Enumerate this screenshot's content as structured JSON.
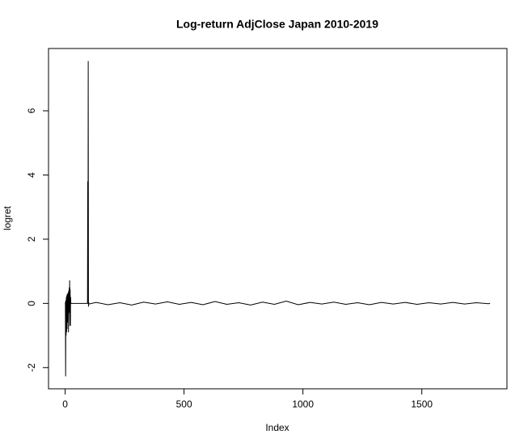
{
  "chart_data": {
    "type": "line",
    "title": "Log-return AdjClose Japan 2010-2019",
    "x_label": "Index",
    "y_label": "logret",
    "x": [
      1,
      2,
      3,
      4,
      5,
      6,
      7,
      8,
      9,
      10,
      11,
      12,
      13,
      14,
      15,
      16,
      17,
      18,
      19,
      20,
      21,
      22,
      23,
      24,
      25,
      30,
      40,
      50,
      60,
      70,
      80,
      90,
      94,
      95,
      96,
      97,
      98,
      99,
      100,
      130,
      180,
      230,
      280,
      330,
      380,
      430,
      480,
      530,
      580,
      630,
      680,
      730,
      780,
      830,
      880,
      930,
      980,
      1030,
      1080,
      1130,
      1180,
      1230,
      1280,
      1330,
      1380,
      1430,
      1480,
      1530,
      1580,
      1630,
      1680,
      1730,
      1780,
      1787
    ],
    "values": [
      0.05,
      -2.27,
      0.1,
      -1.0,
      0.2,
      -0.9,
      0.25,
      -0.8,
      0.3,
      -0.6,
      0.3,
      -0.5,
      0.35,
      -0.9,
      0.4,
      -0.3,
      0.5,
      -0.2,
      0.72,
      -0.7,
      0.45,
      -0.7,
      0.2,
      0.0,
      0.0,
      0.0,
      0.0,
      0.0,
      0.0,
      0.0,
      0.0,
      0.0,
      0.0,
      3.8,
      0.0,
      7.55,
      -0.1,
      0.03,
      -0.02,
      0.03,
      -0.04,
      0.02,
      -0.05,
      0.04,
      -0.02,
      0.05,
      -0.03,
      0.03,
      -0.04,
      0.06,
      -0.03,
      0.02,
      -0.05,
      0.04,
      -0.03,
      0.07,
      -0.04,
      0.03,
      -0.02,
      0.04,
      -0.03,
      0.02,
      -0.04,
      0.03,
      -0.02,
      0.03,
      -0.03,
      0.02,
      -0.02,
      0.03,
      -0.02,
      0.02,
      -0.01,
      0.0
    ],
    "color": "#000000",
    "xlim": [
      -70,
      1858
    ],
    "ylim": [
      -2.66,
      7.94
    ],
    "xticks": [
      0,
      500,
      1000,
      1500
    ],
    "yticks": [
      -2,
      0,
      2,
      4,
      6
    ]
  }
}
